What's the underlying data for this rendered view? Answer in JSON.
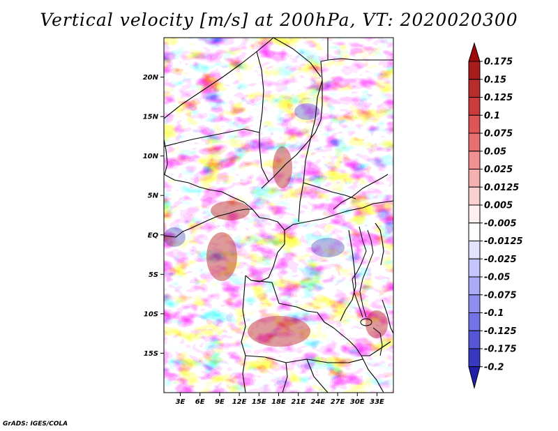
{
  "title": "Vertical velocity [m/s] at 200hPa, VT: 2020020300",
  "credit": "GrADS: IGES/COLA",
  "chart_data": {
    "type": "heatmap",
    "title": "Vertical velocity [m/s] at 200hPa, VT: 2020020300",
    "variable": "Vertical velocity",
    "units": "m/s",
    "level": "200hPa",
    "valid_time": "2020020300",
    "x_range_deg_east": [
      0.5,
      35.5
    ],
    "y_range_deg_north": [
      -20,
      25
    ],
    "x_ticks": [
      {
        "value": 3,
        "label": "3E"
      },
      {
        "value": 6,
        "label": "6E"
      },
      {
        "value": 9,
        "label": "9E"
      },
      {
        "value": 12,
        "label": "12E"
      },
      {
        "value": 15,
        "label": "15E"
      },
      {
        "value": 18,
        "label": "18E"
      },
      {
        "value": 21,
        "label": "21E"
      },
      {
        "value": 24,
        "label": "24E"
      },
      {
        "value": 27,
        "label": "27E"
      },
      {
        "value": 30,
        "label": "30E"
      },
      {
        "value": 33,
        "label": "33E"
      }
    ],
    "y_ticks": [
      {
        "value": 20,
        "label": "20N"
      },
      {
        "value": 15,
        "label": "15N"
      },
      {
        "value": 10,
        "label": "10N"
      },
      {
        "value": 5,
        "label": "5N"
      },
      {
        "value": 0,
        "label": "EQ"
      },
      {
        "value": -5,
        "label": "5S"
      },
      {
        "value": -10,
        "label": "10S"
      },
      {
        "value": -15,
        "label": "15S"
      }
    ],
    "colorbar": {
      "labels": [
        "0.175",
        "0.15",
        "0.125",
        "0.1",
        "0.075",
        "0.05",
        "0.025",
        "0.0125",
        "0.005",
        "-0.005",
        "-0.0125",
        "-0.025",
        "-0.05",
        "-0.075",
        "-0.1",
        "-0.125",
        "-0.175",
        "-0.2"
      ],
      "colors": [
        "#9e0a0a",
        "#a81c1c",
        "#b92c2c",
        "#cc3b3b",
        "#dd5555",
        "#e87070",
        "#f09090",
        "#f5b0b0",
        "#fad0d0",
        "#fff0f0",
        "#ffffff",
        "#e2e2ff",
        "#c6c6ff",
        "#aaaaf6",
        "#8e8ef0",
        "#7474e8",
        "#5656d8",
        "#3838c2",
        "#1e1ea8"
      ]
    }
  }
}
